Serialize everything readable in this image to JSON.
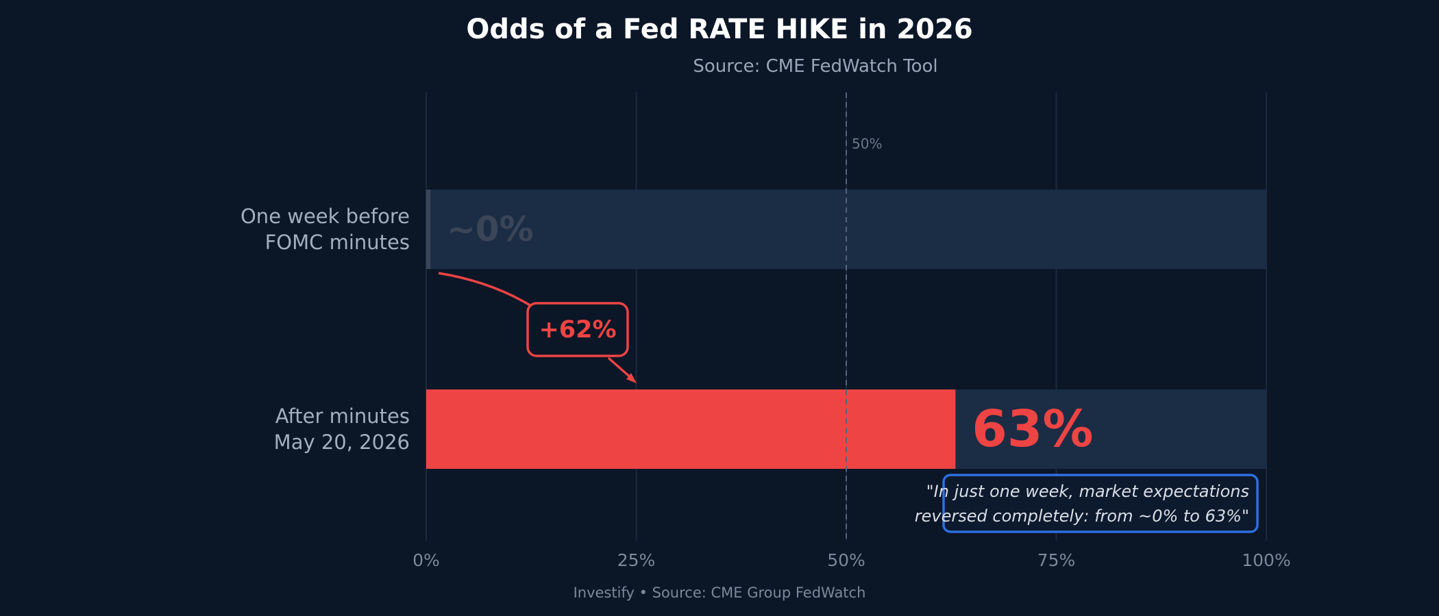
{
  "chart_data": {
    "type": "bar",
    "orientation": "horizontal",
    "title": "Odds of a Fed RATE HIKE in 2026",
    "subtitle": "Source: CME FedWatch Tool",
    "categories": [
      "One week before\nFOMC minutes",
      "After minutes\nMay 20, 2026"
    ],
    "values": [
      0.5,
      63
    ],
    "value_labels": [
      "~0%",
      "63%"
    ],
    "xlim": [
      0,
      100
    ],
    "xticks": [
      0,
      25,
      50,
      75,
      100
    ],
    "xtick_labels": [
      "0%",
      "25%",
      "50%",
      "75%",
      "100%"
    ],
    "reference_line": {
      "value": 50,
      "label": "50%"
    },
    "change_annotation": "+62%",
    "quote": [
      "\"In just one week, market expectations",
      "reversed completely: from ~0% to 63%\""
    ],
    "footer": "Investify  •  Source: CME Group FedWatch",
    "grid": true,
    "colors": {
      "background": "#0b1627",
      "track": "#1b2c45",
      "highlight": "#ef4444",
      "muted_bar": "#3a4658",
      "quote_border": "#2f6fe0"
    }
  }
}
